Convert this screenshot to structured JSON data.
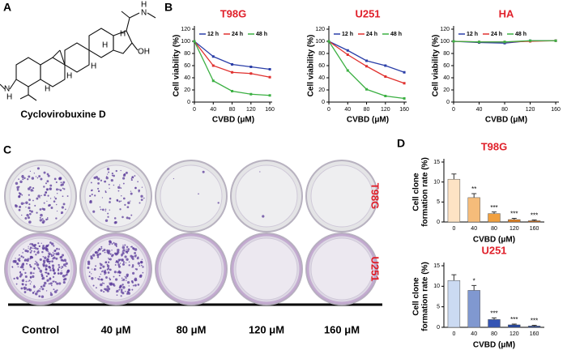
{
  "panels": [
    "A",
    "B",
    "C",
    "D"
  ],
  "structure": {
    "name": "Cyclovirobuxine D",
    "atom_labels": [
      "H",
      "N",
      "H",
      "H",
      "OH",
      "H",
      "H",
      "N",
      "H",
      "H"
    ]
  },
  "colony_assay": {
    "rows": [
      "T98G",
      "U251"
    ],
    "columns": [
      "Control",
      "40 μM",
      "80 μM",
      "120 μM",
      "160 μM"
    ]
  },
  "chart_data": [
    {
      "type": "line",
      "title": "T98G",
      "xlabel": "CVBD (μM)",
      "ylabel": "Cell viability (%)",
      "x": [
        0,
        40,
        80,
        120,
        160
      ],
      "xlim": [
        0,
        165
      ],
      "xticks": [
        0,
        40,
        80,
        120,
        160
      ],
      "ylim": [
        0,
        120
      ],
      "yticks": [
        0,
        20,
        40,
        60,
        80,
        100,
        120
      ],
      "series": [
        {
          "name": "12 h",
          "color": "#2b3fa8",
          "values": [
            100,
            75,
            62,
            58,
            54
          ]
        },
        {
          "name": "24 h",
          "color": "#e0312f",
          "values": [
            100,
            60,
            49,
            47,
            41
          ]
        },
        {
          "name": "48 h",
          "color": "#3cb043",
          "values": [
            100,
            35,
            18,
            13,
            11
          ]
        }
      ]
    },
    {
      "type": "line",
      "title": "U251",
      "xlabel": "CVBD (μM)",
      "ylabel": "Cell viability (%)",
      "x": [
        0,
        40,
        80,
        120,
        160
      ],
      "xlim": [
        0,
        165
      ],
      "xticks": [
        0,
        40,
        80,
        120,
        160
      ],
      "ylim": [
        0,
        120
      ],
      "yticks": [
        0,
        20,
        40,
        60,
        80,
        100,
        120
      ],
      "series": [
        {
          "name": "12 h",
          "color": "#2b3fa8",
          "values": [
            100,
            85,
            68,
            60,
            49
          ]
        },
        {
          "name": "24 h",
          "color": "#e0312f",
          "values": [
            100,
            78,
            59,
            42,
            31
          ]
        },
        {
          "name": "48 h",
          "color": "#3cb043",
          "values": [
            100,
            52,
            21,
            10,
            6
          ]
        }
      ]
    },
    {
      "type": "line",
      "title": "HA",
      "xlabel": "CVBD (μM)",
      "ylabel": "Cell viability (%)",
      "x": [
        0,
        40,
        80,
        120,
        160
      ],
      "xlim": [
        0,
        165
      ],
      "xticks": [
        0,
        40,
        80,
        120,
        160
      ],
      "ylim": [
        0,
        120
      ],
      "yticks": [
        0,
        20,
        40,
        60,
        80,
        100,
        120
      ],
      "series": [
        {
          "name": "12 h",
          "color": "#2b3fa8",
          "values": [
            100,
            98,
            97,
            101,
            101
          ]
        },
        {
          "name": "24 h",
          "color": "#e0312f",
          "values": [
            100,
            99,
            99,
            100,
            101
          ]
        },
        {
          "name": "48 h",
          "color": "#3cb043",
          "values": [
            100,
            99,
            99,
            101,
            101
          ]
        }
      ]
    },
    {
      "type": "bar",
      "title": "T98G",
      "xlabel": "CVBD (μM)",
      "ylabel": [
        "Cell clone",
        "formation rate (%)"
      ],
      "categories": [
        "0",
        "40",
        "80",
        "120",
        "160"
      ],
      "values": [
        10.7,
        6.1,
        2.1,
        0.6,
        0.3
      ],
      "errors": [
        1.3,
        1.0,
        0.4,
        0.3,
        0.2
      ],
      "significance": [
        null,
        "**",
        "***",
        "***",
        "***"
      ],
      "colors": [
        "#fde3c4",
        "#f5bc7a",
        "#f0a040",
        "#e08020",
        "#c06010"
      ],
      "ylim": [
        0,
        15
      ],
      "yticks": [
        0,
        5,
        10,
        15
      ]
    },
    {
      "type": "bar",
      "title": "U251",
      "xlabel": "CVBD (μM)",
      "ylabel": [
        "Cell clone",
        "formation rate (%)"
      ],
      "categories": [
        "0",
        "40",
        "80",
        "120",
        "160"
      ],
      "values": [
        11.4,
        9.0,
        1.9,
        0.6,
        0.3
      ],
      "errors": [
        1.4,
        1.2,
        0.4,
        0.2,
        0.2
      ],
      "significance": [
        null,
        "*",
        "***",
        "***",
        "***"
      ],
      "colors": [
        "#cbdaf2",
        "#8098d0",
        "#3454b4",
        "#2244a0",
        "#123284"
      ],
      "ylim": [
        0,
        15
      ],
      "yticks": [
        0,
        5,
        10,
        15
      ]
    }
  ]
}
